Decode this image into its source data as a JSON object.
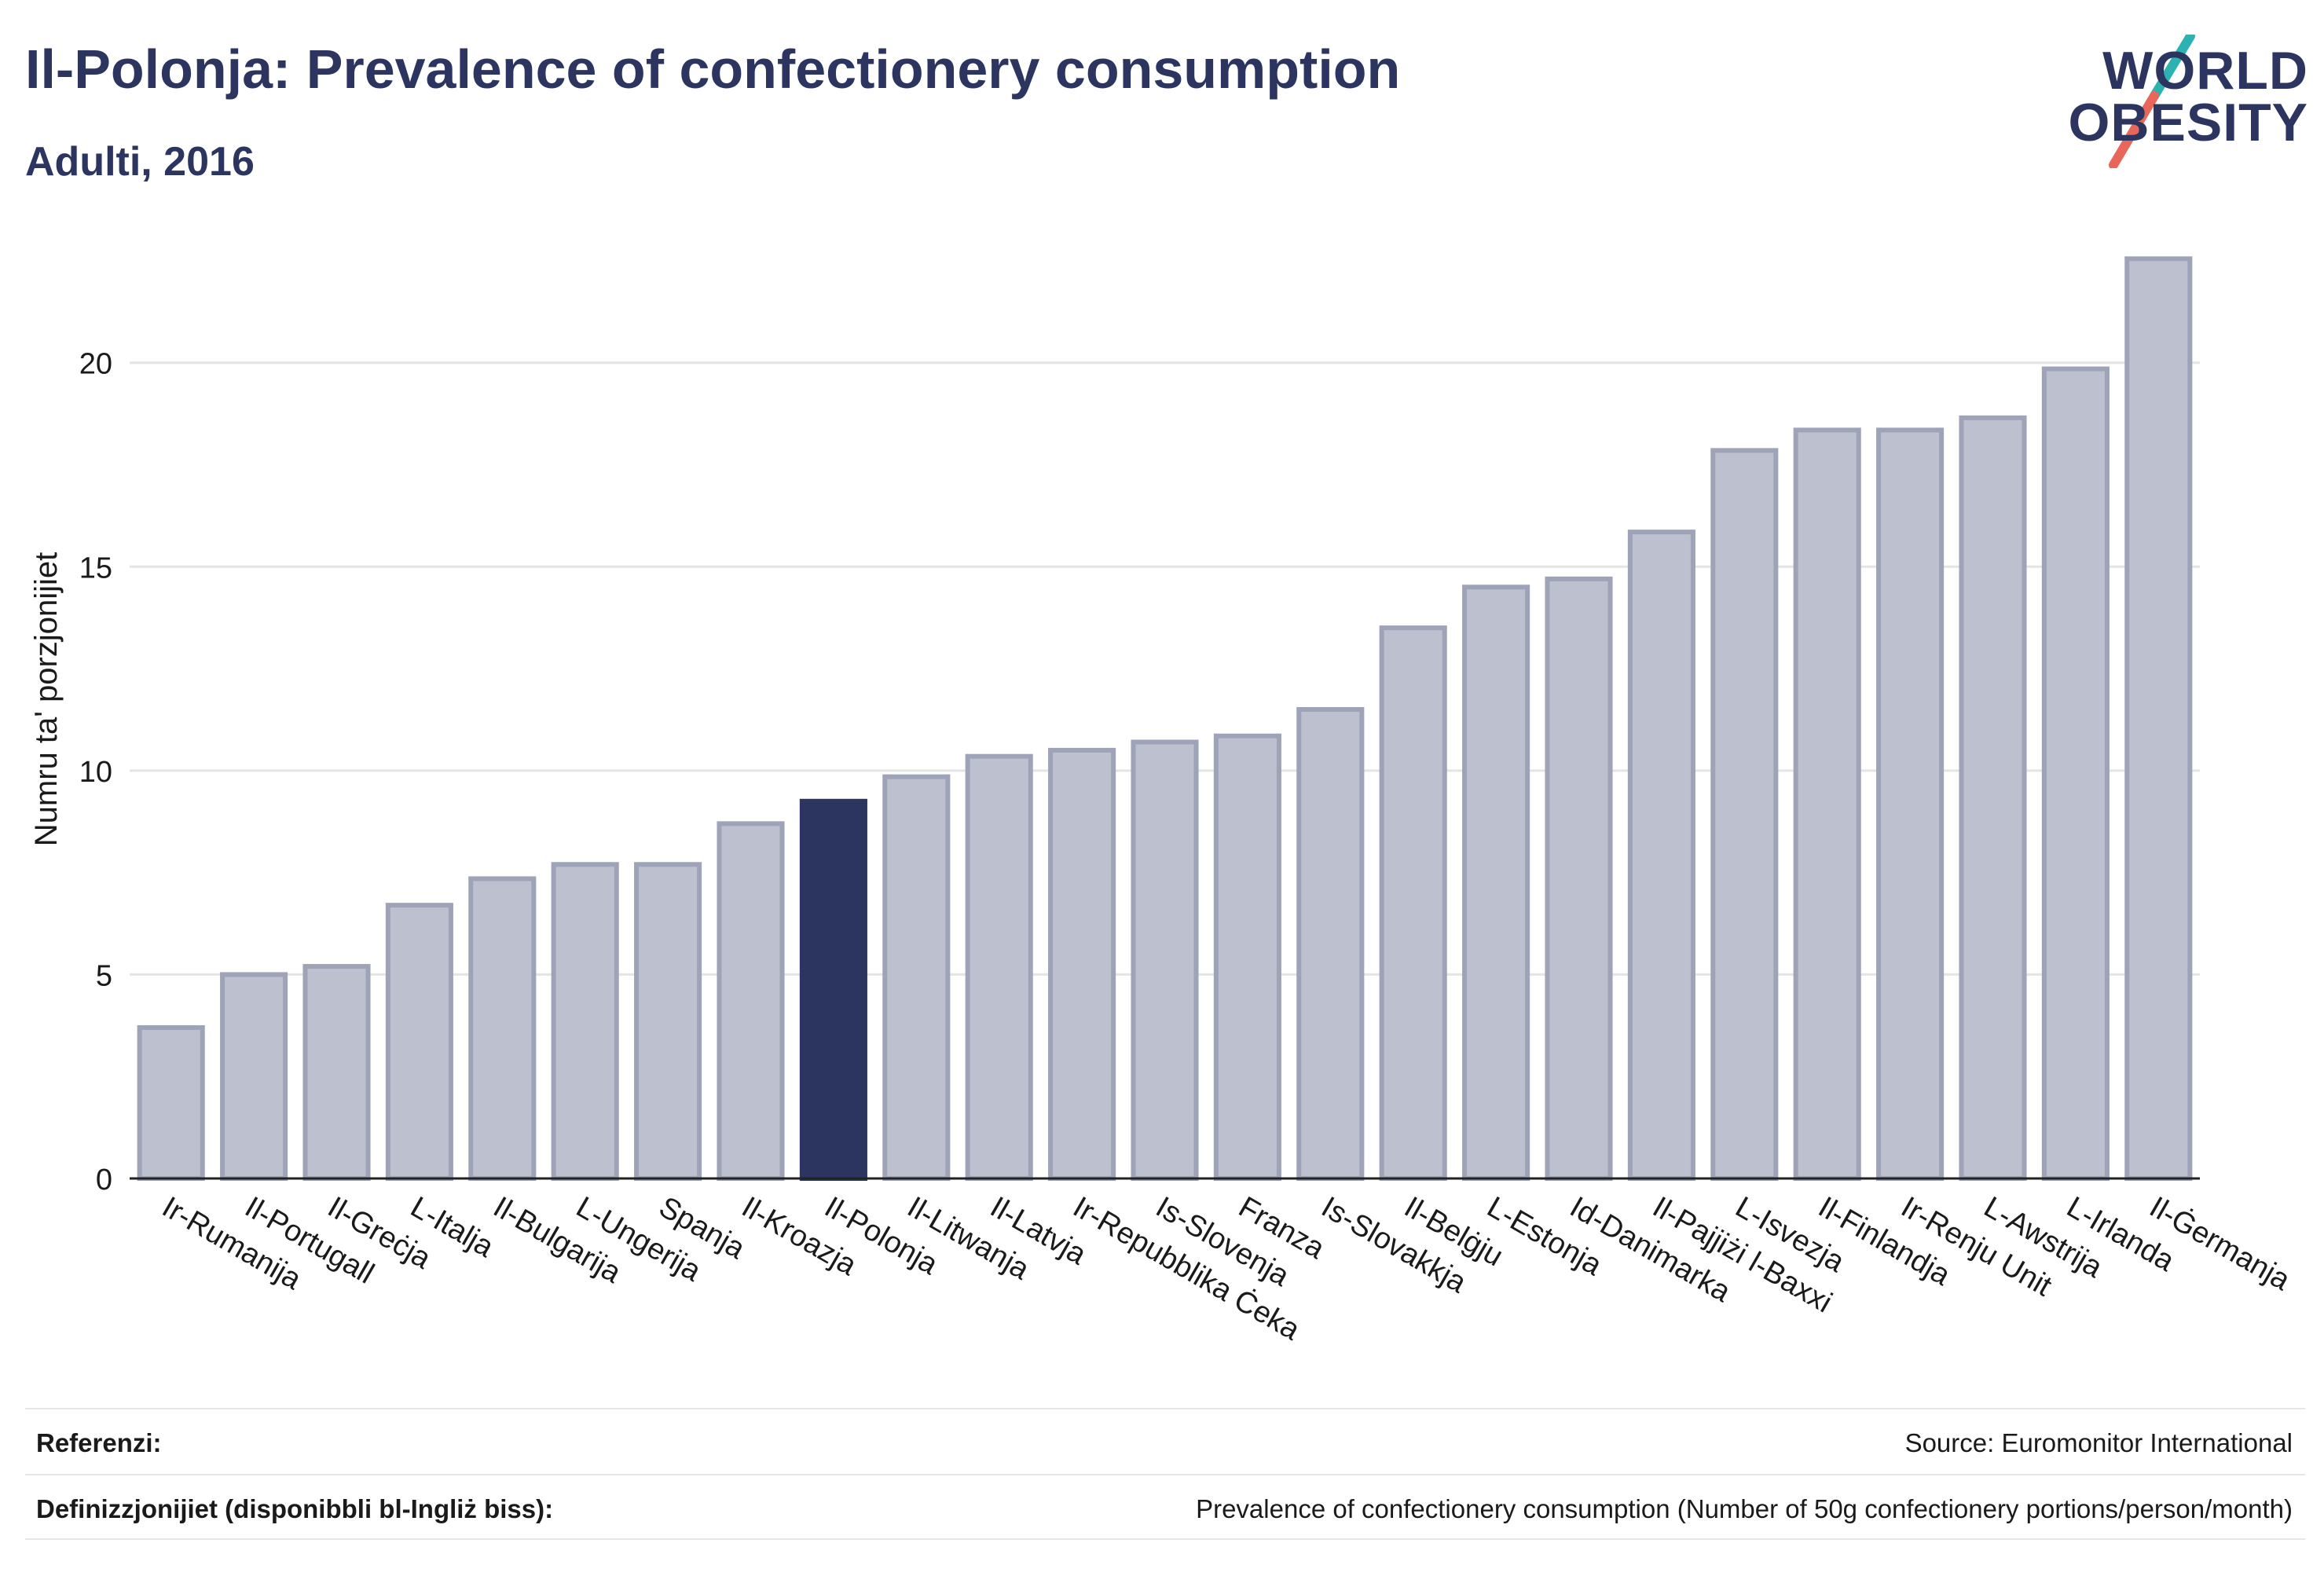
{
  "header": {
    "title": "Il-Polonja: Prevalence of confectionery consumption",
    "subtitle": "Adulti, 2016"
  },
  "logo": {
    "line1": "WORLD",
    "line2": "OBESITY",
    "slash_colors": [
      "#2cb3b1",
      "#e8665a"
    ]
  },
  "colors": {
    "bar": "#bcc0cf",
    "bar_border": "#9ea3b8",
    "highlight": "#2b3560",
    "grid": "#e4e4e4",
    "axis": "#222222"
  },
  "chart_data": {
    "type": "bar",
    "title": "Il-Polonja: Prevalence of confectionery consumption",
    "subtitle": "Adulti, 2016",
    "ylabel": "Numru ta' porzjonijiet",
    "xlabel": "",
    "ylim": [
      0,
      23.5
    ],
    "yticks": [
      0,
      5,
      10,
      15,
      20
    ],
    "grid": true,
    "highlight": "Il-Polonja",
    "categories": [
      "Ir-Rumanija",
      "Il-Portugall",
      "Il-Greċja",
      "L-Italja",
      "Il-Bulgarija",
      "L-Ungerija",
      "Spanja",
      "Il-Kroazja",
      "Il-Polonja",
      "Il-Litwanja",
      "Il-Latvja",
      "Ir-Repubblika Ċeka",
      "Is-Slovenja",
      "Franza",
      "Is-Slovakkja",
      "Il-Belġju",
      "L-Estonja",
      "Id-Danimarka",
      "Il-Pajjiżi l-Baxxi",
      "L-Isvezja",
      "Il-Finlandja",
      "Ir-Renju Unit",
      "L-Awstrija",
      "L-Irlanda",
      "Il-Ġermanja"
    ],
    "values": [
      3.7,
      5.0,
      5.2,
      6.7,
      7.35,
      7.7,
      7.7,
      8.7,
      9.25,
      9.85,
      10.35,
      10.5,
      10.7,
      10.85,
      11.5,
      13.5,
      14.5,
      14.7,
      15.85,
      17.85,
      18.35,
      18.35,
      18.65,
      19.85,
      22.55
    ]
  },
  "footer": {
    "references_label": "Referenzi:",
    "references_value": "Source: Euromonitor International",
    "definitions_label": "Definizzjonijiet (disponibbli bl-Ingliż biss):",
    "definitions_value": "Prevalence of confectionery consumption (Number of 50g confectionery portions/person/month)"
  }
}
